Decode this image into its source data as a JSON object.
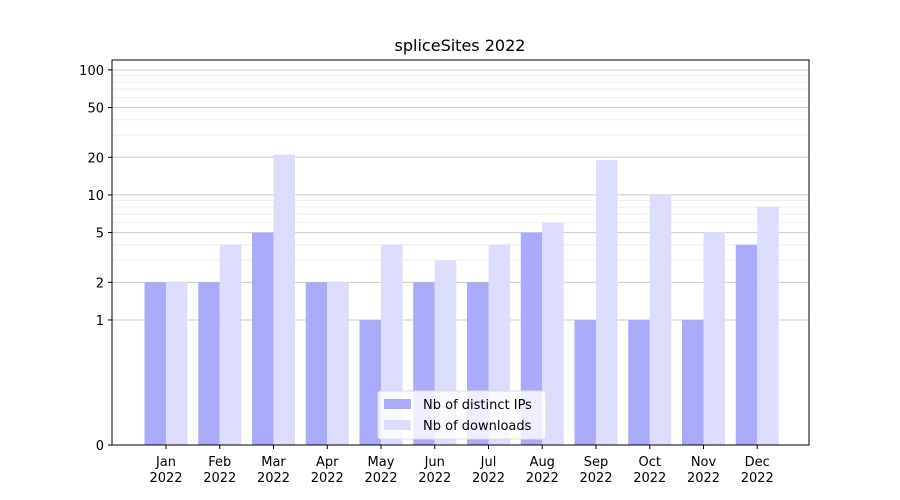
{
  "chart_data": {
    "type": "bar",
    "title": "spliceSites 2022",
    "xlabel": "",
    "ylabel": "",
    "y_scale": "symlog",
    "ylim": [
      0,
      120
    ],
    "y_ticks": [
      0,
      1,
      2,
      5,
      10,
      20,
      50,
      100
    ],
    "categories": [
      {
        "month": "Jan",
        "year": "2022"
      },
      {
        "month": "Feb",
        "year": "2022"
      },
      {
        "month": "Mar",
        "year": "2022"
      },
      {
        "month": "Apr",
        "year": "2022"
      },
      {
        "month": "May",
        "year": "2022"
      },
      {
        "month": "Jun",
        "year": "2022"
      },
      {
        "month": "Jul",
        "year": "2022"
      },
      {
        "month": "Aug",
        "year": "2022"
      },
      {
        "month": "Sep",
        "year": "2022"
      },
      {
        "month": "Oct",
        "year": "2022"
      },
      {
        "month": "Nov",
        "year": "2022"
      },
      {
        "month": "Dec",
        "year": "2022"
      }
    ],
    "series": [
      {
        "name": "Nb of distinct IPs",
        "color": "#aaaafa",
        "values": [
          2,
          2,
          5,
          2,
          1,
          2,
          2,
          5,
          1,
          1,
          1,
          4
        ]
      },
      {
        "name": "Nb of downloads",
        "color": "#dcdcfc",
        "values": [
          2,
          4,
          21,
          2,
          4,
          3,
          4,
          6,
          19,
          10,
          5,
          8
        ]
      }
    ],
    "legend_position": "bottom-center",
    "grid": "horizontal"
  }
}
